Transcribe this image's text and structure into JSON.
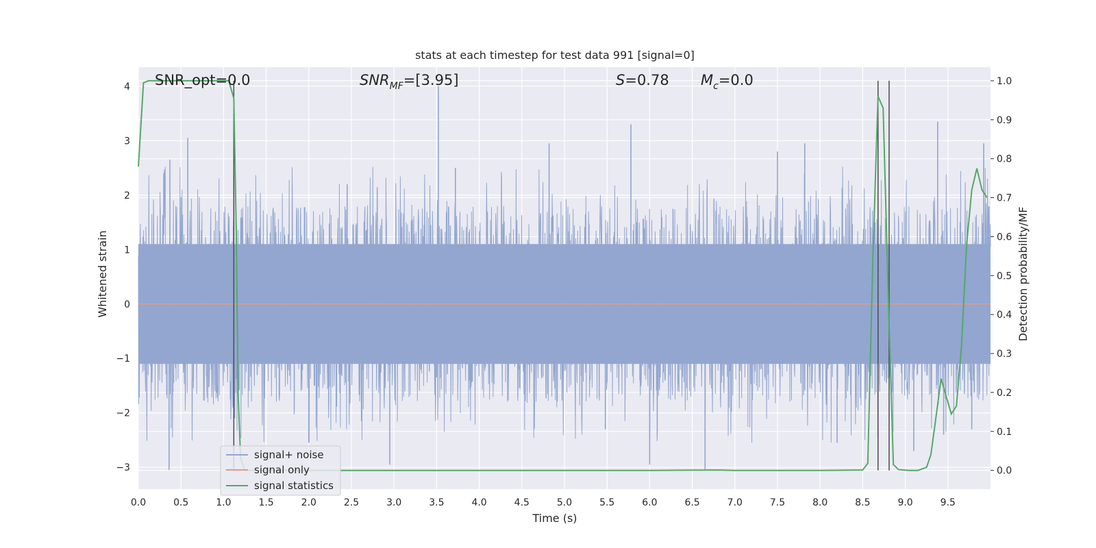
{
  "chart_data": {
    "type": "line",
    "title": "stats at each timestep for test data 991 [signal=0]",
    "xlabel": "Time (s)",
    "ylabel": "Whitened strain",
    "y2label": "Detection probability/MF",
    "xlim": [
      0.0,
      10.0
    ],
    "ylim": [
      -3.4,
      4.35
    ],
    "y2lim": [
      -0.048,
      1.035
    ],
    "xticks": [
      0.0,
      0.5,
      1.0,
      1.5,
      2.0,
      2.5,
      3.0,
      3.5,
      4.0,
      4.5,
      5.0,
      5.5,
      6.0,
      6.5,
      7.0,
      7.5,
      8.0,
      8.5,
      9.0,
      9.5
    ],
    "xtick_labels": [
      "0.0",
      "0.5",
      "1.0",
      "1.5",
      "2.0",
      "2.5",
      "3.0",
      "3.5",
      "4.0",
      "4.5",
      "5.0",
      "5.5",
      "6.0",
      "6.5",
      "7.0",
      "7.5",
      "8.0",
      "8.5",
      "9.0",
      "9.5"
    ],
    "yticks": [
      -3,
      -2,
      -1,
      0,
      1,
      2,
      3,
      4
    ],
    "ytick_labels": [
      "−3",
      "−2",
      "−1",
      "0",
      "1",
      "2",
      "3",
      "4"
    ],
    "y2ticks": [
      0.0,
      0.1,
      0.2,
      0.3,
      0.4,
      0.5,
      0.6,
      0.7,
      0.8,
      0.9,
      1.0
    ],
    "y2tick_labels": [
      "0.0",
      "0.1",
      "0.2",
      "0.3",
      "0.4",
      "0.5",
      "0.6",
      "0.7",
      "0.8",
      "0.9",
      "1.0"
    ],
    "grid": true,
    "legend_placement": "lower-left",
    "annotations": {
      "snr_opt": "SNR_opt=0.0",
      "snr_mf_main": "SNR",
      "snr_mf_sub": "MF",
      "snr_mf_value": "=[3.95]",
      "s_main": "S",
      "s_value": "=0.78",
      "mc_main": "M",
      "mc_sub": "c",
      "mc_value": "=0.0"
    },
    "noise_envelope": {
      "core_upper": 1.1,
      "core_lower": -1.1,
      "typical_upper": 1.8,
      "typical_lower": -1.75,
      "peaks": [
        {
          "x": 0.37,
          "y": 2.65
        },
        {
          "x": 0.58,
          "y": 3.05
        },
        {
          "x": 0.36,
          "y": -3.05
        },
        {
          "x": 1.12,
          "y": 2.4
        },
        {
          "x": 1.13,
          "y": -2.1
        },
        {
          "x": 2.45,
          "y": 2.2
        },
        {
          "x": 2.0,
          "y": -2.55
        },
        {
          "x": 3.52,
          "y": 4.0
        },
        {
          "x": 2.95,
          "y": -2.95
        },
        {
          "x": 3.72,
          "y": 2.5
        },
        {
          "x": 4.82,
          "y": 2.95
        },
        {
          "x": 5.48,
          "y": -2.3
        },
        {
          "x": 5.78,
          "y": 3.3
        },
        {
          "x": 6.0,
          "y": -2.95
        },
        {
          "x": 6.65,
          "y": -3.05
        },
        {
          "x": 7.5,
          "y": 2.8
        },
        {
          "x": 7.82,
          "y": 2.95
        },
        {
          "x": 8.2,
          "y": -2.55
        },
        {
          "x": 9.1,
          "y": -2.7
        },
        {
          "x": 9.38,
          "y": 3.35
        },
        {
          "x": 9.45,
          "y": -2.4
        },
        {
          "x": 9.78,
          "y": -2.3
        },
        {
          "x": 9.92,
          "y": 2.95
        }
      ]
    },
    "series": [
      {
        "name": "signal+ noise",
        "color": "#92a6cf",
        "axis": "left"
      },
      {
        "name": "signal only",
        "color": "#e49a82",
        "axis": "left",
        "x": [
          0.0,
          10.0
        ],
        "values": [
          0.0,
          0.0
        ]
      },
      {
        "name": "signal statistics",
        "color": "#55a868",
        "axis": "right",
        "x": [
          0.0,
          0.06,
          0.12,
          0.2,
          0.5,
          0.8,
          1.06,
          1.12,
          1.15,
          1.17,
          1.2,
          1.25,
          1.5,
          2.0,
          3.0,
          4.0,
          5.0,
          6.0,
          6.8,
          7.0,
          8.0,
          8.5,
          8.56,
          8.62,
          8.68,
          8.74,
          8.8,
          8.86,
          8.92,
          8.98,
          9.05,
          9.15,
          9.25,
          9.3,
          9.35,
          9.42,
          9.48,
          9.54,
          9.6,
          9.66,
          9.72,
          9.78,
          9.84,
          9.9,
          9.96
        ],
        "values": [
          0.78,
          0.995,
          1.0,
          1.0,
          1.0,
          1.0,
          1.0,
          0.955,
          0.6,
          0.2,
          0.03,
          0.0,
          0.0,
          0.0,
          0.0,
          0.0,
          0.0,
          0.0,
          0.001,
          0.0,
          0.0,
          0.001,
          0.018,
          0.55,
          0.96,
          0.93,
          0.45,
          0.015,
          0.002,
          0.001,
          0.0,
          0.0,
          0.008,
          0.04,
          0.12,
          0.235,
          0.19,
          0.145,
          0.165,
          0.32,
          0.58,
          0.72,
          0.775,
          0.72,
          0.7
        ]
      }
    ],
    "vertical_markers": [
      1.12,
      8.68,
      8.81
    ],
    "marker_color": "#4c4c4c"
  }
}
